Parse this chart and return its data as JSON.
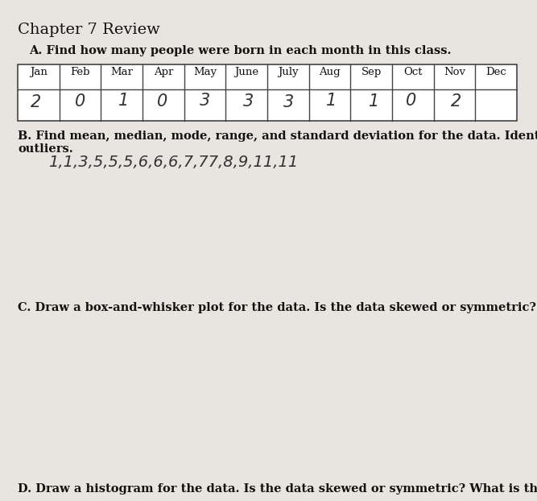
{
  "title": "Chapter 7 Review",
  "section_a": "A. Find how many people were born in each month in this class.",
  "months": [
    "Jan",
    "Feb",
    "Mar",
    "Apr",
    "May",
    "June",
    "July",
    "Aug",
    "Sep",
    "Oct",
    "Nov",
    "Dec"
  ],
  "values": [
    "2",
    "0",
    "1",
    "0",
    "3",
    "3",
    "3",
    "1",
    "1",
    "0",
    "2",
    ""
  ],
  "section_b_line1": "B. Find mean, median, mode, range, and standard deviation for the data. Identify any",
  "section_b_line2": "outliers.",
  "section_b_data": "1,1,3,5,5,5,6,6,6,7,77,8,9,11,11",
  "section_c": "C. Draw a box-and-whisker plot for the data. Is the data skewed or symmetric?",
  "section_d": "D. Draw a histogram for the data. Is the data skewed or symmetric? What is the",
  "bg_color": "#e8e4df",
  "paper_color": "#e8e5e0",
  "text_color": "#111111",
  "bold_color": "#111111",
  "table_line_color": "#444444",
  "table_bg": "#ffffff",
  "handwritten_color": "#333333",
  "title_fontsize": 14,
  "body_fontsize": 10.5,
  "table_header_fontsize": 9.5,
  "table_value_fontsize": 15,
  "hw_data_fontsize": 14
}
